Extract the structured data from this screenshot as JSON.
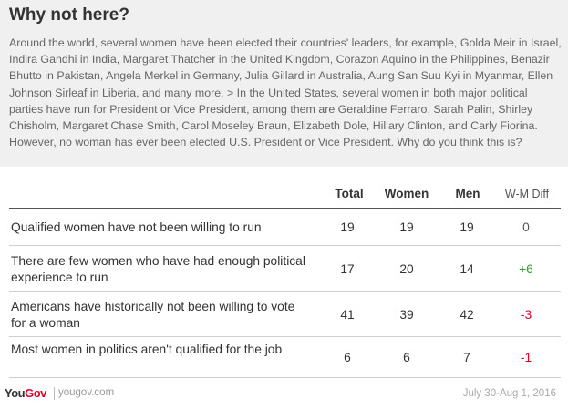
{
  "title": "Why not here?",
  "question": "Around the world, several women have been elected their countries' leaders, for example, Golda Meir in Israel, Indira Gandhi in India, Margaret Thatcher in the United Kingdom, Corazon Aquino in the Philippines, Benazir Bhutto in Pakistan, Angela Merkel in Germany, Julia Gillard in Australia, Aung San Suu Kyi in Myanmar, Ellen Johnson Sirleaf in Liberia, and many more. > In the United States, several women in both major political parties have run for President or Vice President, among them are Geraldine Ferraro, Sarah Palin, Shirley Chisholm, Margaret Chase Smith, Carol Moseley Braun, Elizabeth Dole, Hillary Clinton, and Carly Fiorina. However, no woman has ever been elected U.S. President or Vice President. Why do you think this is?",
  "chart_data": {
    "type": "table",
    "columns": [
      "Total",
      "Women",
      "Men",
      "W-M Diff"
    ],
    "rows": [
      {
        "label": "Qualified women have not been willing to run",
        "total": "19",
        "women": "19",
        "men": "19",
        "diff": "0"
      },
      {
        "label": "There are few women who have had enough political experience to run",
        "total": "17",
        "women": "20",
        "men": "14",
        "diff": "+6"
      },
      {
        "label": "Americans have historically not been willing to vote for a woman",
        "total": "41",
        "women": "39",
        "men": "42",
        "diff": "-3"
      },
      {
        "label": "Most women in politics aren't qualified for the job",
        "total": "6",
        "women": "6",
        "men": "7",
        "diff": "-1"
      }
    ]
  },
  "colors": {
    "positive": "#2ca02c",
    "negative": "#e4002b",
    "neutral": "#555555",
    "brand": "#e4002b"
  },
  "footer": {
    "logo_you": "You",
    "logo_gov": "Gov",
    "url": "yougov.com",
    "date": "July 30-Aug 1, 2016"
  }
}
